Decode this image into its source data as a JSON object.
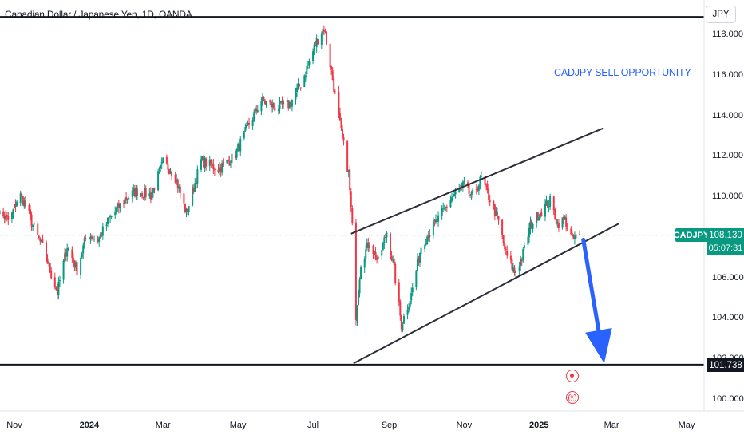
{
  "header": {
    "title": "Canadian Dollar / Japanese Yen, 1D, OANDA",
    "currency": "JPY"
  },
  "annotation": {
    "text": "CADJPY SELL OPPORTUNITY",
    "color": "#2962ff"
  },
  "last_price": {
    "symbol": "CADJPY",
    "price": "108.130",
    "countdown": "05:07:31",
    "color": "#089981"
  },
  "level_label": "101.738",
  "colors": {
    "up": "#089981",
    "down": "#f23645",
    "arrow": "#2962ff",
    "lines": "#131722"
  },
  "events": [
    "dividend-event-icon",
    "split-event-icon"
  ],
  "chart_data": {
    "type": "candlestick",
    "title": "Canadian Dollar / Japanese Yen, 1D, OANDA",
    "xlabel": "",
    "ylabel": "",
    "ylim": [
      99.0,
      118.9
    ],
    "grid": false,
    "y_ticks": [
      "118.000",
      "116.000",
      "114.000",
      "112.000",
      "110.000",
      "108.000",
      "106.000",
      "104.000",
      "102.000",
      "100.000"
    ],
    "x_ticks": [
      {
        "label": "Nov",
        "bold": false
      },
      {
        "label": "2024",
        "bold": true
      },
      {
        "label": "Mar",
        "bold": false
      },
      {
        "label": "May",
        "bold": false
      },
      {
        "label": "Jul",
        "bold": false
      },
      {
        "label": "Sep",
        "bold": false
      },
      {
        "label": "Nov",
        "bold": false
      },
      {
        "label": "2025",
        "bold": true
      },
      {
        "label": "Mar",
        "bold": false
      },
      {
        "label": "May",
        "bold": false
      }
    ],
    "close_path": [
      [
        "2023-10-15",
        109.5
      ],
      [
        "2023-10-28",
        108.8
      ],
      [
        "2023-11-05",
        110.2
      ],
      [
        "2023-11-10",
        109.6
      ],
      [
        "2023-11-18",
        108.3
      ],
      [
        "2023-11-25",
        107.4
      ],
      [
        "2023-12-01",
        106.2
      ],
      [
        "2023-12-06",
        105.3
      ],
      [
        "2023-12-14",
        107.6
      ],
      [
        "2023-12-22",
        106.4
      ],
      [
        "2023-12-30",
        108.2
      ],
      [
        "2024-01-08",
        107.9
      ],
      [
        "2024-01-18",
        109.0
      ],
      [
        "2024-01-30",
        109.9
      ],
      [
        "2024-02-08",
        110.3
      ],
      [
        "2024-02-20",
        110.1
      ],
      [
        "2024-03-01",
        111.7
      ],
      [
        "2024-03-10",
        111.2
      ],
      [
        "2024-03-20",
        109.2
      ],
      [
        "2024-04-01",
        111.8
      ],
      [
        "2024-04-15",
        111.4
      ],
      [
        "2024-04-28",
        112.0
      ],
      [
        "2024-05-10",
        113.6
      ],
      [
        "2024-05-20",
        114.8
      ],
      [
        "2024-06-01",
        114.4
      ],
      [
        "2024-06-12",
        114.6
      ],
      [
        "2024-06-22",
        115.7
      ],
      [
        "2024-07-04",
        117.7
      ],
      [
        "2024-07-10",
        118.4
      ],
      [
        "2024-07-16",
        116.2
      ],
      [
        "2024-07-24",
        113.2
      ],
      [
        "2024-07-30",
        111.2
      ],
      [
        "2024-08-02",
        108.5
      ],
      [
        "2024-08-05",
        104.2
      ],
      [
        "2024-08-09",
        106.8
      ],
      [
        "2024-08-16",
        107.8
      ],
      [
        "2024-08-23",
        106.8
      ],
      [
        "2024-08-30",
        108.3
      ],
      [
        "2024-09-05",
        106.4
      ],
      [
        "2024-09-11",
        103.7
      ],
      [
        "2024-09-19",
        105.2
      ],
      [
        "2024-09-27",
        107.6
      ],
      [
        "2024-10-05",
        108.4
      ],
      [
        "2024-10-12",
        109.0
      ],
      [
        "2024-10-22",
        110.0
      ],
      [
        "2024-11-01",
        110.6
      ],
      [
        "2024-11-07",
        110.0
      ],
      [
        "2024-11-15",
        110.9
      ],
      [
        "2024-11-22",
        109.9
      ],
      [
        "2024-11-29",
        108.8
      ],
      [
        "2024-12-05",
        107.2
      ],
      [
        "2024-12-12",
        106.3
      ],
      [
        "2024-12-18",
        107.0
      ],
      [
        "2024-12-25",
        108.6
      ],
      [
        "2025-01-02",
        109.3
      ],
      [
        "2025-01-10",
        109.8
      ],
      [
        "2025-01-16",
        108.7
      ],
      [
        "2025-01-22",
        108.9
      ],
      [
        "2025-01-28",
        107.9
      ],
      [
        "2025-02-03",
        108.13
      ]
    ],
    "series": [
      {
        "name": "CADJPY",
        "last": 108.13
      }
    ],
    "horizontal_levels": [
      118.9,
      101.738
    ],
    "channel": {
      "upper": [
        [
          "2024-08-01",
          108.2
        ],
        [
          "2025-02-22",
          113.4
        ]
      ],
      "lower": [
        [
          "2024-08-03",
          101.8
        ],
        [
          "2025-03-07",
          108.7
        ]
      ]
    },
    "projection_arrow": [
      [
        "2025-02-06",
        107.9
      ],
      [
        "2025-02-23",
        101.8
      ]
    ],
    "annotations": [
      "CADJPY SELL OPPORTUNITY"
    ]
  }
}
